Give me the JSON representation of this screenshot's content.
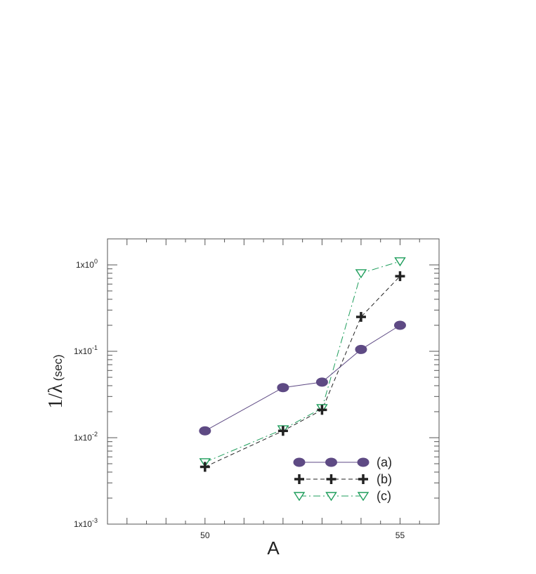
{
  "chart_data": {
    "type": "line",
    "xlabel": "A",
    "ylabel": "1/λ",
    "ylabel_unit": "(sec)",
    "xlim": [
      47.5,
      56
    ],
    "ylim": [
      0.001,
      2.0
    ],
    "yscale": "log",
    "xticks": [
      50,
      55
    ],
    "xtick_labels": [
      "50",
      "55"
    ],
    "yticks": [
      0.001,
      0.01,
      0.1,
      1
    ],
    "ytick_labels": [
      {
        "base": "1x10",
        "exp": "-3"
      },
      {
        "base": "1x10",
        "exp": "-2"
      },
      {
        "base": "1x10",
        "exp": "-1"
      },
      {
        "base": "1x10",
        "exp": "0"
      }
    ],
    "grid": false,
    "legend_position": "bottom-right",
    "series": [
      {
        "name": "(a)",
        "color": "#5e4a84",
        "marker": "circle",
        "line": "solid",
        "x": [
          50,
          52,
          53,
          54,
          55
        ],
        "y": [
          0.012,
          0.038,
          0.044,
          0.105,
          0.2
        ]
      },
      {
        "name": "(b)",
        "color": "#222222",
        "marker": "plus",
        "line": "dashed",
        "x": [
          50,
          52,
          53,
          54,
          55
        ],
        "y": [
          0.0046,
          0.012,
          0.021,
          0.25,
          0.74
        ]
      },
      {
        "name": "(c)",
        "color": "#1f9e5c",
        "marker": "triangle-down",
        "line": "dash-dot",
        "x": [
          50,
          52,
          53,
          54,
          55
        ],
        "y": [
          0.0052,
          0.0125,
          0.022,
          0.8,
          1.1
        ]
      }
    ]
  }
}
